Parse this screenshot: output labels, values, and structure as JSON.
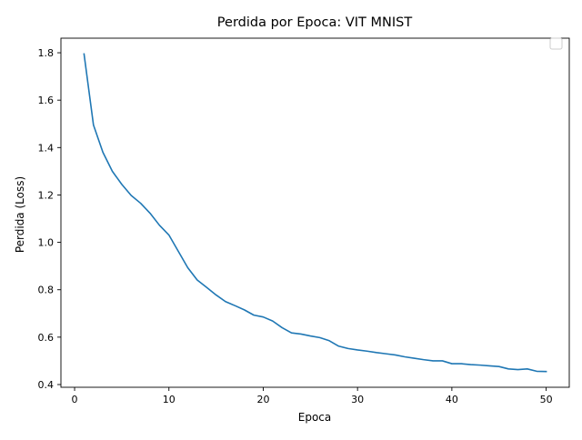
{
  "chart_data": {
    "type": "line",
    "title": "Perdida por Epoca: VIT MNIST",
    "xlabel": "Epoca",
    "ylabel": "Perdida (Loss)",
    "xlim": [
      -1.45,
      52.45
    ],
    "ylim": [
      0.3885,
      1.8615
    ],
    "xticks": [
      0,
      10,
      20,
      30,
      40,
      50
    ],
    "xtick_labels": [
      "0",
      "10",
      "20",
      "30",
      "40",
      "50"
    ],
    "yticks": [
      0.4,
      0.6,
      0.8,
      1.0,
      1.2,
      1.4,
      1.6,
      1.8
    ],
    "ytick_labels": [
      "0.4",
      "0.6",
      "0.8",
      "1.0",
      "1.2",
      "1.4",
      "1.6",
      "1.8"
    ],
    "grid": false,
    "legend": "top-right (empty)",
    "series": [
      {
        "color": "#1f77b4",
        "x": [
          1,
          2,
          3,
          4,
          5,
          6,
          7,
          8,
          9,
          10,
          11,
          12,
          13,
          14,
          15,
          16,
          17,
          18,
          19,
          20,
          21,
          22,
          23,
          24,
          25,
          26,
          27,
          28,
          29,
          30,
          31,
          32,
          33,
          34,
          35,
          36,
          37,
          38,
          39,
          40,
          41,
          42,
          43,
          44,
          45,
          46,
          47,
          48,
          49,
          50
        ],
        "y": [
          1.795,
          1.495,
          1.38,
          1.3,
          1.245,
          1.198,
          1.165,
          1.123,
          1.072,
          1.031,
          0.962,
          0.893,
          0.841,
          0.81,
          0.778,
          0.75,
          0.733,
          0.715,
          0.693,
          0.685,
          0.668,
          0.64,
          0.618,
          0.613,
          0.605,
          0.598,
          0.585,
          0.562,
          0.552,
          0.546,
          0.541,
          0.535,
          0.53,
          0.525,
          0.517,
          0.511,
          0.505,
          0.5,
          0.5,
          0.488,
          0.488,
          0.484,
          0.482,
          0.479,
          0.476,
          0.466,
          0.463,
          0.466,
          0.456,
          0.455
        ]
      }
    ]
  }
}
